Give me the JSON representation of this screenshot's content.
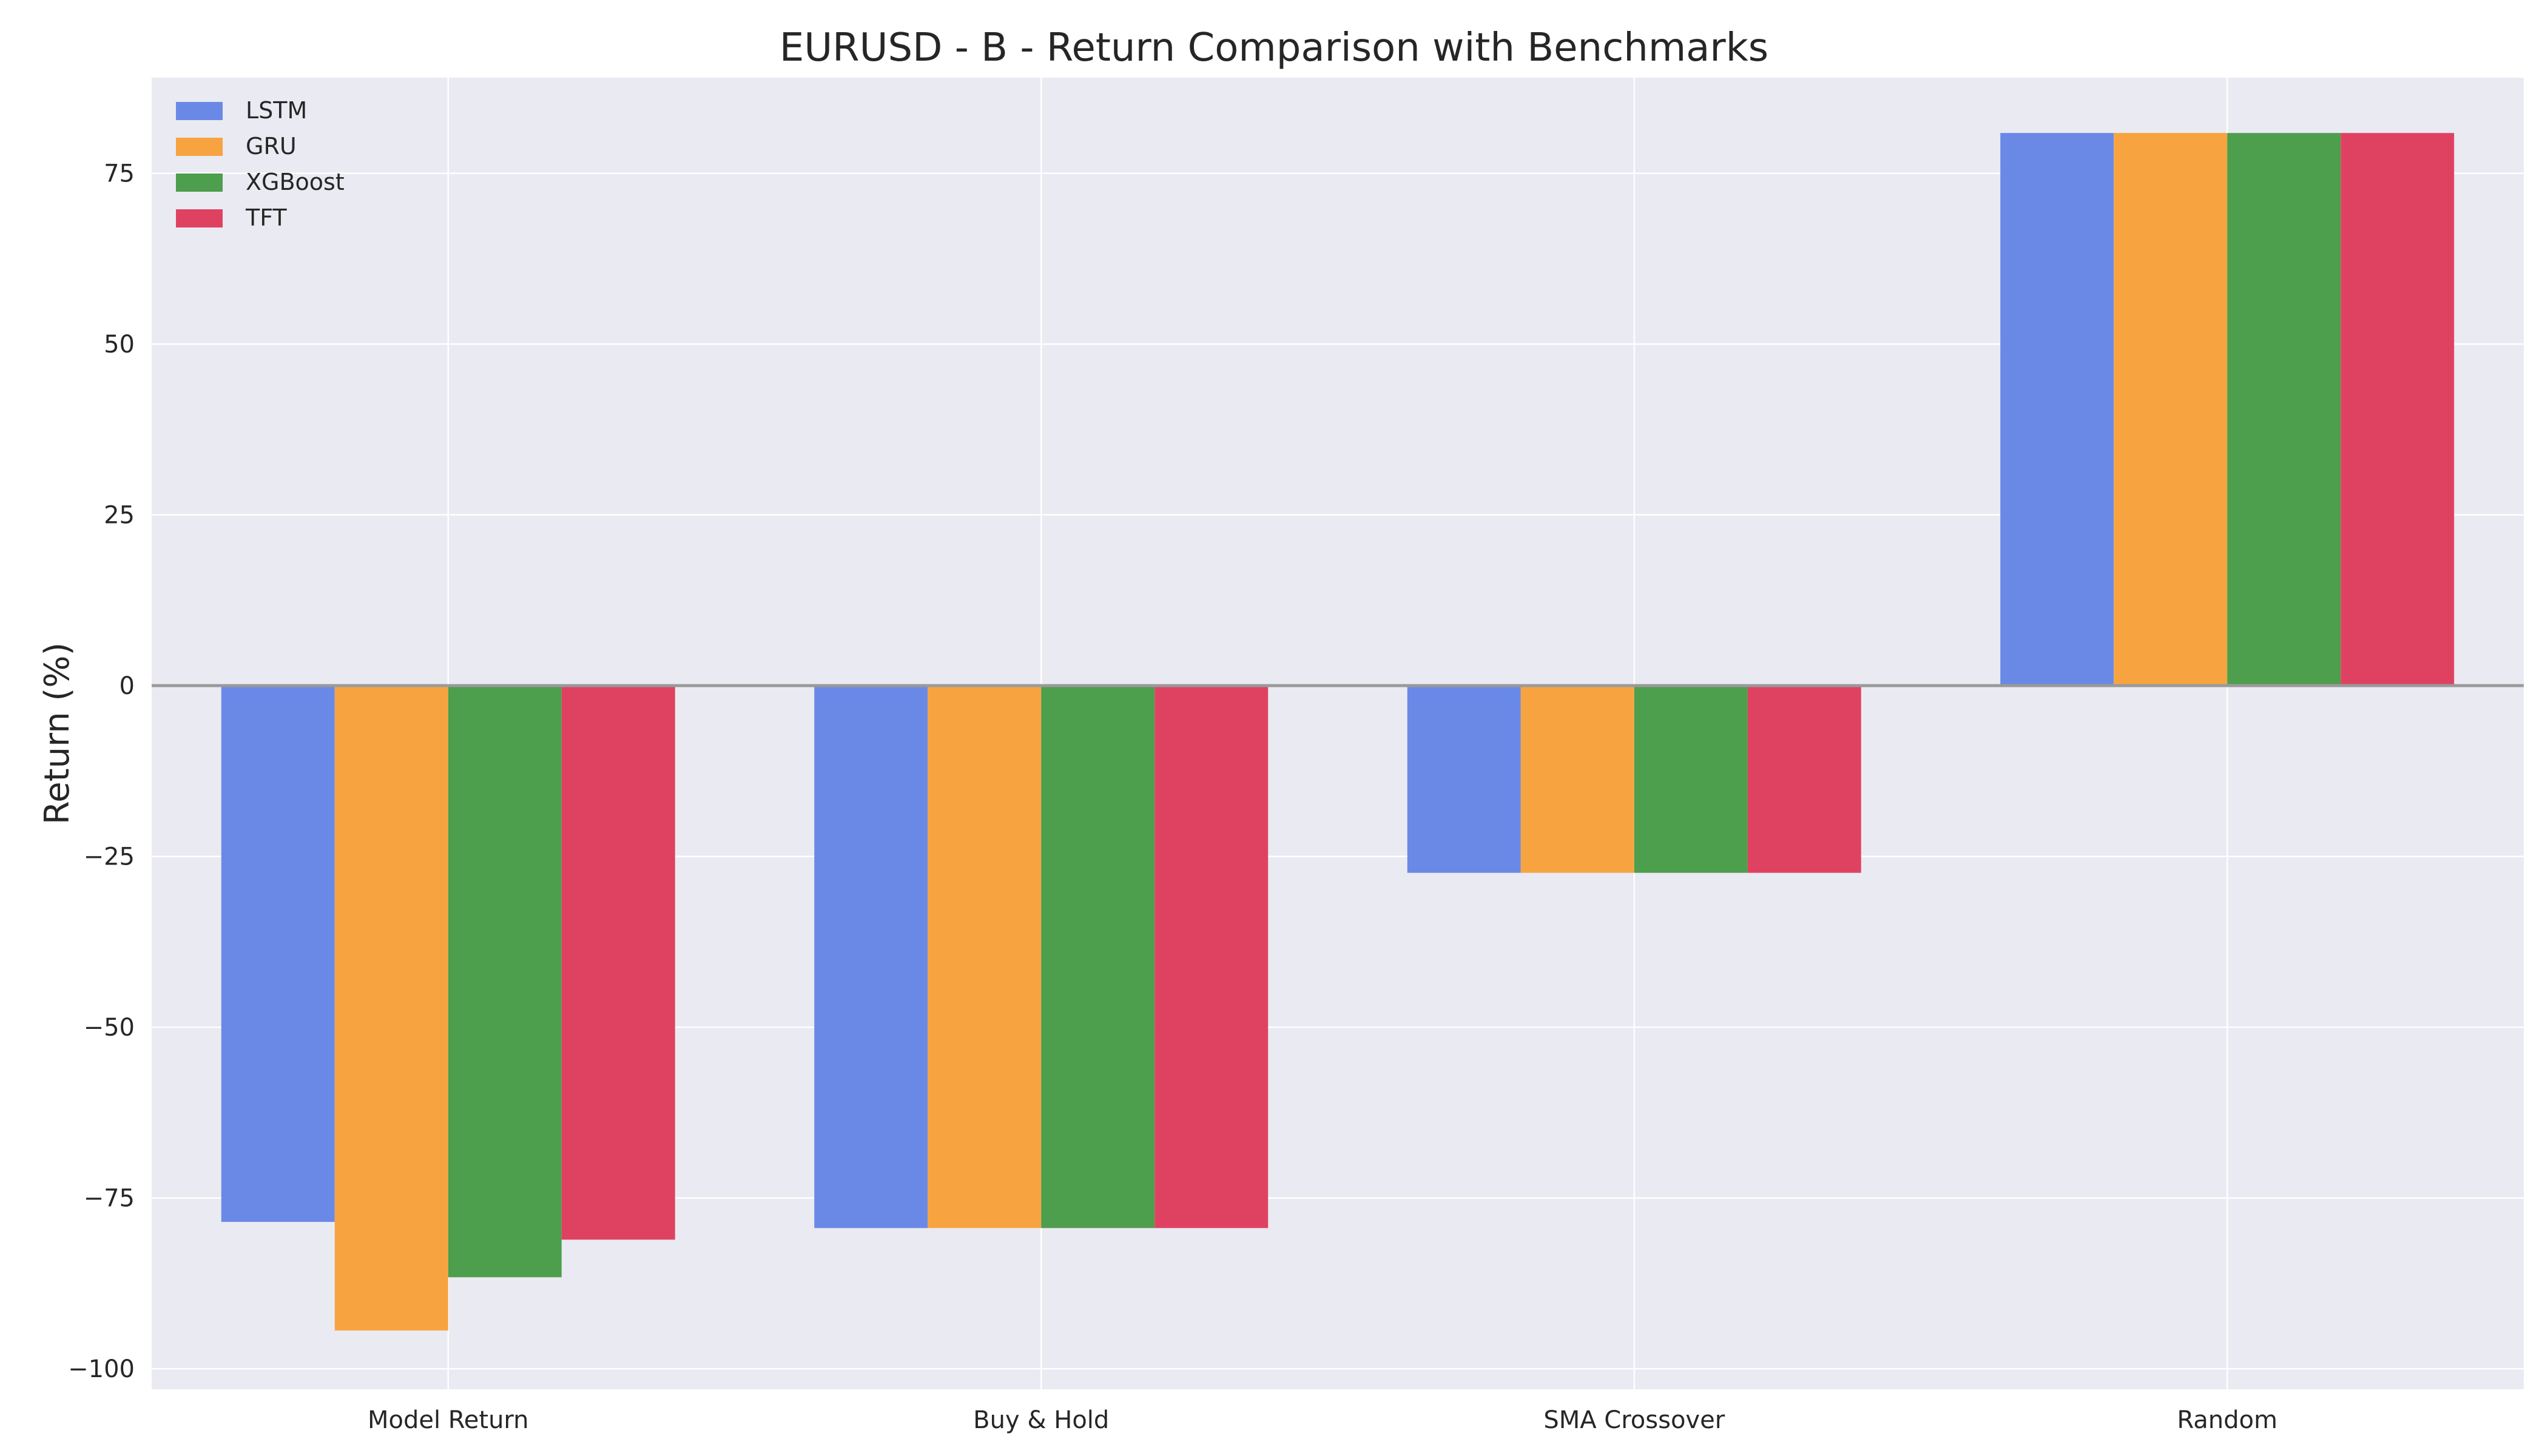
{
  "chart_data": {
    "type": "bar",
    "title": "EURUSD - B - Return Comparison with Benchmarks",
    "xlabel": "",
    "ylabel": "Return (%)",
    "categories": [
      "Model Return",
      "Buy & Hold",
      "SMA Crossover",
      "Random"
    ],
    "series": [
      {
        "name": "LSTM",
        "color": "#6a89e6",
        "values": [
          -78.5,
          -79.4,
          -27.4,
          80.9
        ]
      },
      {
        "name": "GRU",
        "color": "#f7a440",
        "values": [
          -94.4,
          -79.4,
          -27.4,
          80.9
        ]
      },
      {
        "name": "XGBoost",
        "color": "#4d9e4d",
        "values": [
          -86.6,
          -79.4,
          -27.4,
          80.9
        ]
      },
      {
        "name": "TFT",
        "color": "#df4261",
        "values": [
          -81.1,
          -79.4,
          -27.4,
          80.9
        ]
      }
    ],
    "ylim": [
      -103,
      89
    ],
    "yticks": [
      -100,
      -75,
      -50,
      -25,
      0,
      25,
      50,
      75
    ],
    "ytick_labels": [
      "−100",
      "−75",
      "−50",
      "−25",
      "0",
      "25",
      "50",
      "75"
    ],
    "grid": true,
    "legend_position": "top-left",
    "background_color": "#eaeaf2",
    "zero_line_color": "#9a9a9a"
  }
}
